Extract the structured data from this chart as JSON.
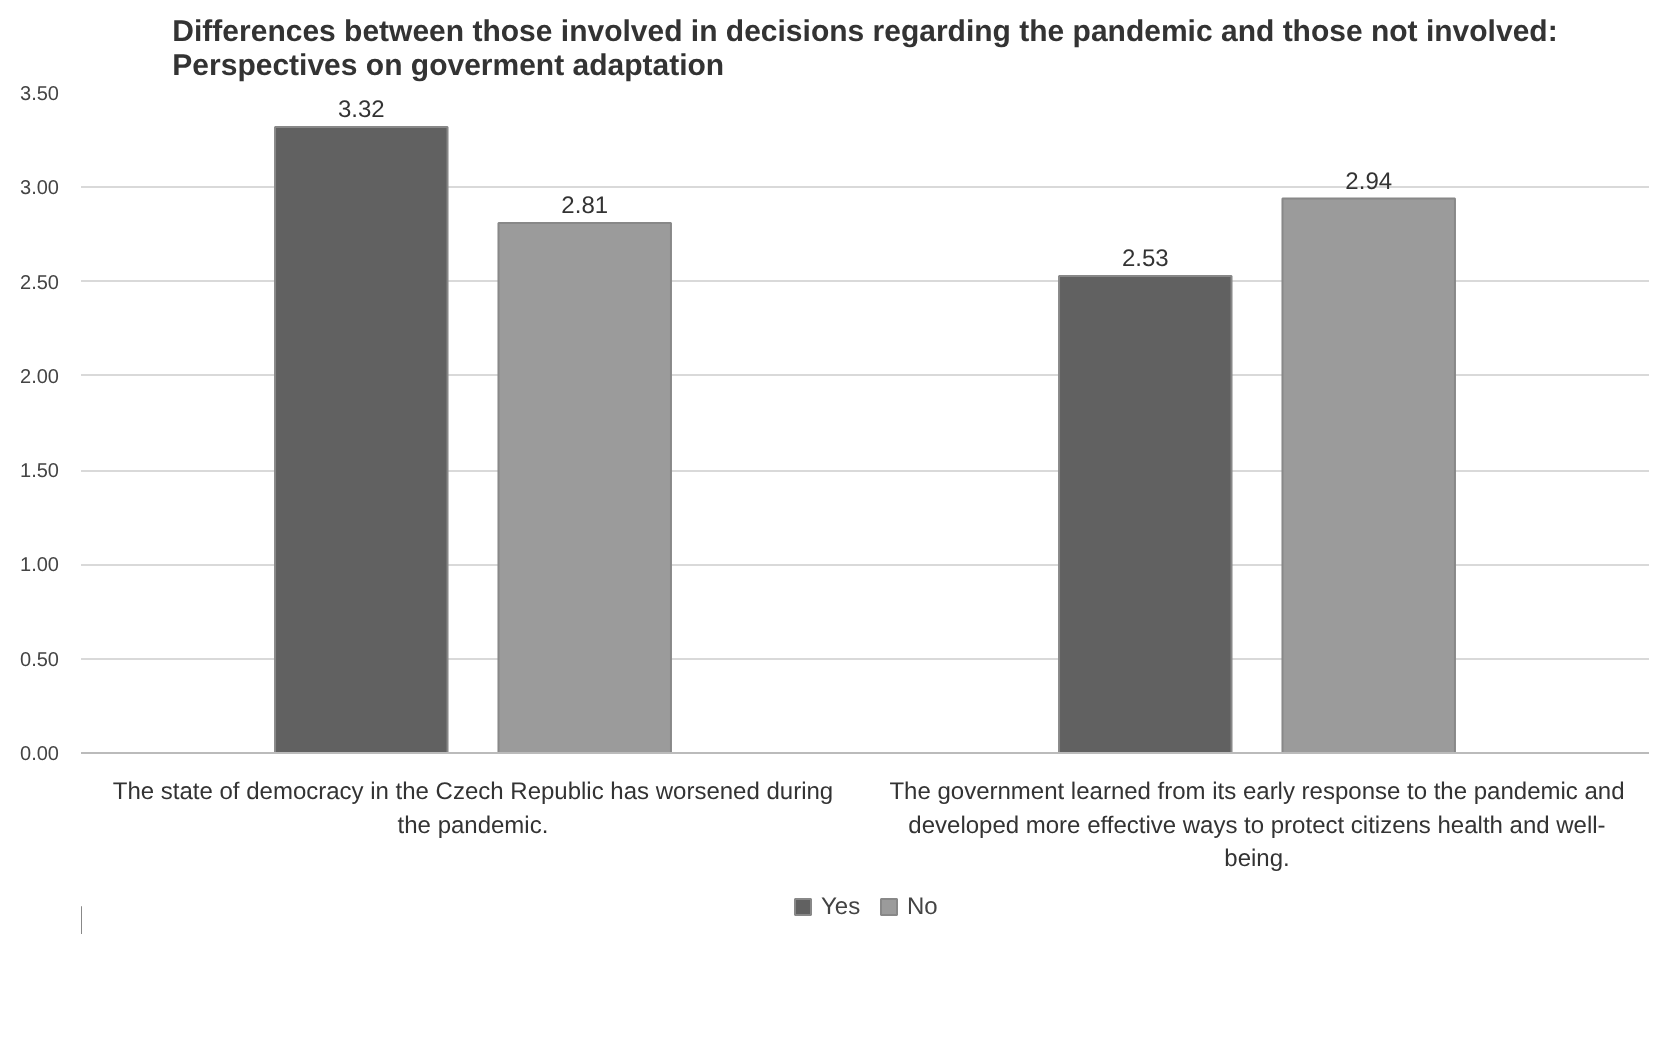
{
  "chart_data": {
    "type": "bar",
    "title": "Differences between those involved in decisions regarding the pandemic and those not involved: Perspectives on goverment adaptation",
    "categories": [
      "The state of democracy in the Czech Republic has worsened during the pandemic.",
      "The government learned from its early response to the pandemic and developed more effective ways to protect citizens health and well-being."
    ],
    "series": [
      {
        "name": "Yes",
        "color": "#616161",
        "values": [
          3.32,
          2.53
        ]
      },
      {
        "name": "No",
        "color": "#9b9b9b",
        "values": [
          2.81,
          2.94
        ]
      }
    ],
    "ylim": [
      0,
      3.5
    ],
    "yticks": [
      {
        "value": 0,
        "label": "0.00"
      },
      {
        "value": 0.5,
        "label": "0.50"
      },
      {
        "value": 1,
        "label": "1.00"
      },
      {
        "value": 1.5,
        "label": "1.50"
      },
      {
        "value": 2,
        "label": "2.00"
      },
      {
        "value": 2.5,
        "label": "2.50"
      },
      {
        "value": 3,
        "label": "3.00"
      },
      {
        "value": 3.5,
        "label": "3.50"
      }
    ],
    "grid": "y",
    "legend": "bottom",
    "data_labels": true
  }
}
